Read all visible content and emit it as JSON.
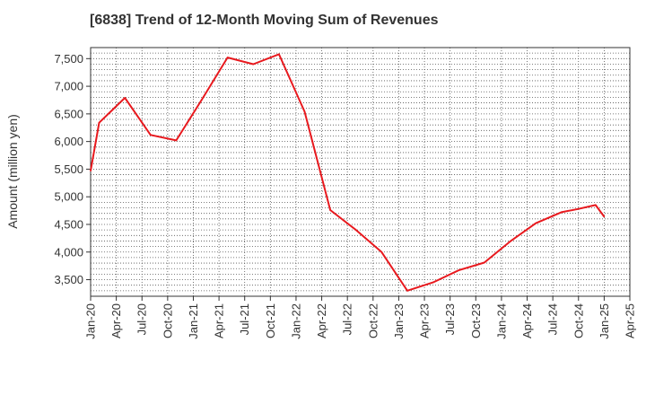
{
  "title": "[6838]  Trend of 12-Month Moving Sum of Revenues",
  "ylabel": "Amount (million yen)",
  "colors": {
    "line": "#e8191e",
    "grid": "#555555",
    "axis": "#333333"
  },
  "chart_data": {
    "type": "line",
    "title": "[6838]  Trend of 12-Month Moving Sum of Revenues",
    "xlabel": "",
    "ylabel": "Amount (million yen)",
    "ylim": [
      3200,
      7700
    ],
    "y_ticks": [
      3500,
      4000,
      4500,
      5000,
      5500,
      6000,
      6500,
      7000,
      7500
    ],
    "y_tick_labels": [
      "3,500",
      "4,000",
      "4,500",
      "5,000",
      "5,500",
      "6,000",
      "6,500",
      "7,000",
      "7,500"
    ],
    "x_tick_labels": [
      "Jan-20",
      "Apr-20",
      "Jul-20",
      "Oct-20",
      "Jan-21",
      "Apr-21",
      "Jul-21",
      "Oct-21",
      "Jan-22",
      "Apr-22",
      "Jul-22",
      "Oct-22",
      "Jan-23",
      "Apr-23",
      "Jul-23",
      "Oct-23",
      "Jan-24",
      "Apr-24",
      "Jul-24",
      "Oct-24",
      "Jan-25",
      "Apr-25"
    ],
    "grid": true,
    "series": [
      {
        "color": "#e8191e",
        "points": [
          [
            "Jan-20",
            5470
          ],
          [
            "Feb-20",
            6340
          ],
          [
            "May-20",
            6790
          ],
          [
            "Aug-20",
            6120
          ],
          [
            "Nov-20",
            6020
          ],
          [
            "Feb-21",
            6760
          ],
          [
            "May-21",
            7520
          ],
          [
            "Aug-21",
            7400
          ],
          [
            "Nov-21",
            7580
          ],
          [
            "Feb-22",
            6540
          ],
          [
            "May-22",
            4760
          ],
          [
            "Aug-22",
            4400
          ],
          [
            "Nov-22",
            4000
          ],
          [
            "Feb-23",
            3300
          ],
          [
            "May-23",
            3450
          ],
          [
            "Aug-23",
            3670
          ],
          [
            "Nov-23",
            3810
          ],
          [
            "Feb-24",
            4190
          ],
          [
            "May-24",
            4520
          ],
          [
            "Aug-24",
            4720
          ],
          [
            "Oct-24",
            4780
          ],
          [
            "Dec-24",
            4850
          ],
          [
            "Jan-25",
            4640
          ]
        ]
      }
    ]
  }
}
